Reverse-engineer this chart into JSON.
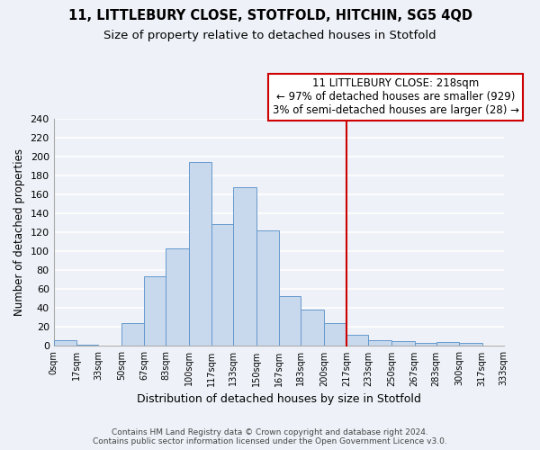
{
  "title": "11, LITTLEBURY CLOSE, STOTFOLD, HITCHIN, SG5 4QD",
  "subtitle": "Size of property relative to detached houses in Stotfold",
  "xlabel": "Distribution of detached houses by size in Stotfold",
  "ylabel": "Number of detached properties",
  "bin_edges": [
    0,
    17,
    33,
    50,
    67,
    83,
    100,
    117,
    133,
    150,
    167,
    183,
    200,
    217,
    233,
    250,
    267,
    283,
    300,
    317,
    333
  ],
  "bin_labels": [
    "0sqm",
    "17sqm",
    "33sqm",
    "50sqm",
    "67sqm",
    "83sqm",
    "100sqm",
    "117sqm",
    "133sqm",
    "150sqm",
    "167sqm",
    "183sqm",
    "200sqm",
    "217sqm",
    "233sqm",
    "250sqm",
    "267sqm",
    "283sqm",
    "300sqm",
    "317sqm",
    "333sqm"
  ],
  "bar_heights": [
    6,
    1,
    0,
    24,
    74,
    103,
    194,
    129,
    168,
    122,
    53,
    38,
    24,
    12,
    6,
    5,
    3,
    4,
    3,
    0
  ],
  "bar_color": "#c8d8ed",
  "bar_edge_color": "#6699cc",
  "property_line_x": 217,
  "annotation_title": "11 LITTLEBURY CLOSE: 218sqm",
  "annotation_line1": "← 97% of detached houses are smaller (929)",
  "annotation_line2": "3% of semi-detached houses are larger (28) →",
  "vline_color": "#cc0000",
  "box_edge_color": "#cc0000",
  "ylim": [
    0,
    240
  ],
  "yticks": [
    0,
    20,
    40,
    60,
    80,
    100,
    120,
    140,
    160,
    180,
    200,
    220,
    240
  ],
  "footnote1": "Contains HM Land Registry data © Crown copyright and database right 2024.",
  "footnote2": "Contains public sector information licensed under the Open Government Licence v3.0.",
  "bg_color": "#eef2f8",
  "grid_color": "#ffffff",
  "title_fontsize": 10.5,
  "subtitle_fontsize": 9.5
}
